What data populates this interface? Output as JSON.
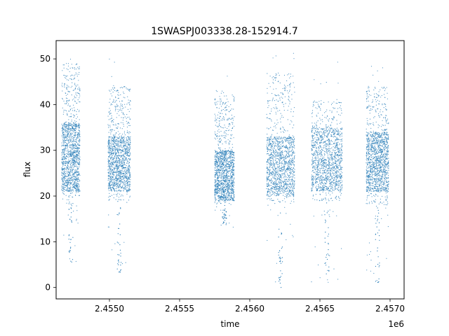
{
  "chart_data": {
    "type": "scatter",
    "title": "1SWASPJ003338.28-152914.7",
    "xlabel": "time",
    "ylabel": "flux",
    "x_offset_label": "1e6",
    "xlim": [
      2454620,
      2457100
    ],
    "ylim": [
      -2.5,
      54
    ],
    "x_ticks": [
      2.455,
      2.4555,
      2.456,
      2.4565,
      2.457
    ],
    "x_tick_labels": [
      "2.4550",
      "2.4555",
      "2.4560",
      "2.4565",
      "2.4570"
    ],
    "y_ticks": [
      0,
      10,
      20,
      30,
      40,
      50
    ],
    "y_tick_labels": [
      "0",
      "10",
      "20",
      "30",
      "40",
      "50"
    ],
    "grid": false,
    "color": "#1f77b4",
    "clusters": [
      {
        "x_range": [
          2454660,
          2454790
        ],
        "flux_low": 19,
        "flux_high": 49,
        "core_low": 21,
        "core_high": 36,
        "min_outlier": 5.5,
        "max_outlier": 51.5
      },
      {
        "x_range": [
          2454990,
          2455150
        ],
        "flux_low": 19,
        "flux_high": 44,
        "core_low": 21,
        "core_high": 33,
        "min_outlier": 3,
        "max_outlier": 50
      },
      {
        "x_range": [
          2455750,
          2455890
        ],
        "flux_low": 18,
        "flux_high": 42,
        "core_low": 19,
        "core_high": 30,
        "min_outlier": 13,
        "max_outlier": 47.5
      },
      {
        "x_range": [
          2456120,
          2456320
        ],
        "flux_low": 18,
        "flux_high": 47,
        "core_low": 20,
        "core_high": 33,
        "min_outlier": 0,
        "max_outlier": 51.5
      },
      {
        "x_range": [
          2456440,
          2456660
        ],
        "flux_low": 19,
        "flux_high": 41,
        "core_low": 21,
        "core_high": 35,
        "min_outlier": 1,
        "max_outlier": 50
      },
      {
        "x_range": [
          2456830,
          2456990
        ],
        "flux_low": 18,
        "flux_high": 44,
        "core_low": 21,
        "core_high": 34,
        "min_outlier": 1,
        "max_outlier": 51.5
      }
    ]
  }
}
